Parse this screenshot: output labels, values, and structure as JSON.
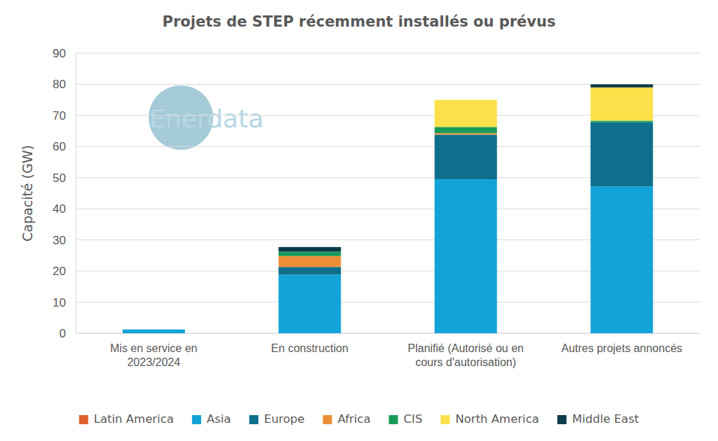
{
  "chart_data": {
    "type": "bar",
    "stacked": true,
    "grid": true,
    "legend": "bottom",
    "title": "Projets de STEP récemment installés ou prévus",
    "y_label": "Capacité (GW)",
    "annotations": [
      "Enerdata"
    ],
    "categories": [
      "Mis en service en 2023/2024",
      "En construction",
      "Planifié (Autorisé ou en cours d'autorisation)",
      "Autres projets annoncés"
    ],
    "ylim": [
      0,
      90
    ],
    "yticks": [
      0,
      10,
      20,
      30,
      40,
      50,
      60,
      70,
      80,
      90
    ],
    "series": [
      {
        "name": "Latin America",
        "color": "#e0602b",
        "values": [
          0,
          0,
          0,
          0
        ]
      },
      {
        "name": "Asia",
        "color": "#12a3d8",
        "values": [
          1.2,
          18.8,
          49.5,
          47.2
        ]
      },
      {
        "name": "Europe",
        "color": "#0e6f8c",
        "values": [
          0,
          2.5,
          14.3,
          20.6
        ]
      },
      {
        "name": "Africa",
        "color": "#ed8f36",
        "values": [
          0,
          3.5,
          0.5,
          0
        ]
      },
      {
        "name": "CIS",
        "color": "#1a9a5a",
        "values": [
          0,
          1.4,
          2.0,
          0.5
        ]
      },
      {
        "name": "North America",
        "color": "#fbe04a",
        "values": [
          0,
          0,
          8.7,
          10.7
        ]
      },
      {
        "name": "Middle East",
        "color": "#0c3c4b",
        "values": [
          0,
          1.5,
          0,
          1.0
        ]
      }
    ]
  }
}
